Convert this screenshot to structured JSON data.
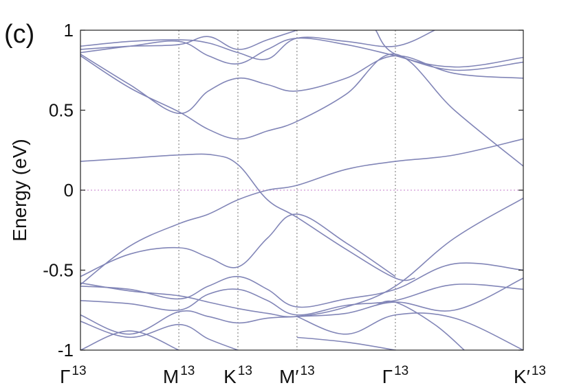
{
  "chart_data": {
    "type": "line",
    "panel_label": "(c)",
    "ylabel": "Energy (eV)",
    "ylim": [
      -1,
      1
    ],
    "xlim": [
      0,
      4.5
    ],
    "y_ticks": [
      {
        "value": 1,
        "label": "1"
      },
      {
        "value": 0.5,
        "label": "0.5"
      },
      {
        "value": 0,
        "label": "0"
      },
      {
        "value": -0.5,
        "label": "-0.5"
      },
      {
        "value": -1,
        "label": "-1"
      }
    ],
    "x_ticks": [
      {
        "value": 0,
        "base": "Γ",
        "sup": "13"
      },
      {
        "value": 1.0,
        "base": "M",
        "sup": "13"
      },
      {
        "value": 1.6,
        "base": "K",
        "sup": "13"
      },
      {
        "value": 2.2,
        "base": "M′",
        "sup": "13"
      },
      {
        "value": 3.2,
        "base": "Γ",
        "sup": "13"
      },
      {
        "value": 4.5,
        "base": "K′",
        "sup": "13"
      }
    ],
    "line_color": "#8185b7",
    "fermi_level": 0,
    "fermi_color": "#d7a6dc",
    "series": [
      {
        "points": [
          [
            0,
            0.18
          ],
          [
            0.5,
            0.2
          ],
          [
            1.0,
            0.22
          ],
          [
            1.35,
            0.22
          ],
          [
            1.6,
            0.16
          ],
          [
            1.9,
            -0.06
          ],
          [
            2.2,
            -0.17
          ],
          [
            2.7,
            -0.37
          ],
          [
            3.2,
            -0.55
          ],
          [
            3.4,
            -0.55
          ]
        ]
      },
      {
        "points": [
          [
            0,
            -0.54
          ],
          [
            0.5,
            -0.4
          ],
          [
            1.0,
            -0.36
          ],
          [
            1.3,
            -0.42
          ],
          [
            1.6,
            -0.48
          ],
          [
            1.9,
            -0.3
          ],
          [
            2.2,
            -0.15
          ],
          [
            2.7,
            -0.33
          ],
          [
            3.2,
            -0.54
          ]
        ]
      },
      {
        "points": [
          [
            0,
            -0.59
          ],
          [
            0.5,
            -0.35
          ],
          [
            1.0,
            -0.21
          ],
          [
            1.3,
            -0.15
          ],
          [
            1.6,
            -0.06
          ],
          [
            1.9,
            0.0
          ],
          [
            2.2,
            0.03
          ],
          [
            2.7,
            0.13
          ],
          [
            3.2,
            0.18
          ],
          [
            3.8,
            0.22
          ],
          [
            4.5,
            0.32
          ]
        ]
      },
      {
        "points": [
          [
            0,
            0.84
          ],
          [
            0.5,
            0.64
          ],
          [
            1.0,
            0.49
          ],
          [
            1.3,
            0.38
          ],
          [
            1.6,
            0.32
          ],
          [
            1.9,
            0.37
          ],
          [
            2.2,
            0.43
          ],
          [
            2.7,
            0.6
          ],
          [
            3.2,
            0.85
          ],
          [
            3.8,
            0.5
          ],
          [
            4.5,
            0.15
          ]
        ]
      },
      {
        "points": [
          [
            0,
            0.85
          ],
          [
            0.5,
            0.66
          ],
          [
            1.0,
            0.48
          ],
          [
            1.3,
            0.62
          ],
          [
            1.6,
            0.7
          ],
          [
            1.9,
            0.66
          ],
          [
            2.2,
            0.62
          ],
          [
            2.7,
            0.7
          ],
          [
            3.2,
            0.84
          ],
          [
            3.8,
            0.73
          ],
          [
            4.5,
            0.7
          ]
        ]
      },
      {
        "points": [
          [
            0,
            0.86
          ],
          [
            0.5,
            0.9
          ],
          [
            1.0,
            0.93
          ],
          [
            1.3,
            0.84
          ],
          [
            1.6,
            0.79
          ],
          [
            1.9,
            0.88
          ],
          [
            2.2,
            0.95
          ],
          [
            2.7,
            0.91
          ],
          [
            3.2,
            0.84
          ],
          [
            3.8,
            0.75
          ],
          [
            4.5,
            0.8
          ]
        ]
      },
      {
        "points": [
          [
            0,
            0.9
          ],
          [
            0.5,
            0.93
          ],
          [
            1.0,
            0.94
          ],
          [
            1.3,
            0.92
          ],
          [
            1.6,
            0.86
          ],
          [
            1.9,
            0.82
          ],
          [
            2.2,
            0.95
          ],
          [
            2.7,
            0.93
          ],
          [
            3.2,
            0.9
          ],
          [
            3.6,
            1.0
          ]
        ]
      },
      {
        "points": [
          [
            0,
            0.88
          ],
          [
            0.5,
            0.9
          ],
          [
            1.0,
            0.91
          ],
          [
            1.3,
            0.96
          ],
          [
            1.6,
            0.88
          ],
          [
            1.9,
            0.94
          ],
          [
            2.2,
            1.0
          ]
        ]
      },
      {
        "points": [
          [
            3.0,
            1.0
          ],
          [
            3.2,
            0.85
          ],
          [
            3.8,
            0.77
          ],
          [
            4.5,
            0.83
          ]
        ]
      },
      {
        "points": [
          [
            0,
            -0.6
          ],
          [
            0.5,
            -0.62
          ],
          [
            1.0,
            -0.68
          ],
          [
            1.3,
            -0.6
          ],
          [
            1.6,
            -0.54
          ],
          [
            1.9,
            -0.62
          ],
          [
            2.2,
            -0.73
          ],
          [
            2.7,
            -0.68
          ],
          [
            3.2,
            -0.62
          ],
          [
            3.8,
            -0.46
          ],
          [
            4.5,
            -0.5
          ]
        ]
      },
      {
        "points": [
          [
            0,
            -0.69
          ],
          [
            0.5,
            -0.71
          ],
          [
            1.0,
            -0.75
          ],
          [
            1.3,
            -0.65
          ],
          [
            1.6,
            -0.62
          ],
          [
            1.9,
            -0.69
          ],
          [
            2.2,
            -0.78
          ],
          [
            2.7,
            -0.72
          ],
          [
            3.2,
            -0.69
          ],
          [
            3.8,
            -0.59
          ],
          [
            4.5,
            -0.62
          ]
        ]
      },
      {
        "points": [
          [
            0,
            -0.58
          ],
          [
            0.5,
            -0.63
          ],
          [
            1.0,
            -0.66
          ],
          [
            1.3,
            -0.7
          ],
          [
            1.6,
            -0.74
          ],
          [
            1.9,
            -0.77
          ],
          [
            2.2,
            -0.79
          ],
          [
            2.7,
            -0.73
          ],
          [
            3.2,
            -0.6
          ],
          [
            3.8,
            -0.3
          ],
          [
            4.5,
            -0.05
          ]
        ]
      },
      {
        "points": [
          [
            0,
            -0.78
          ],
          [
            0.5,
            -0.9
          ],
          [
            1.0,
            -0.76
          ],
          [
            1.3,
            -0.79
          ],
          [
            1.6,
            -0.83
          ],
          [
            1.9,
            -0.8
          ],
          [
            2.2,
            -0.79
          ],
          [
            2.7,
            -0.77
          ],
          [
            3.2,
            -0.7
          ],
          [
            3.8,
            -0.75
          ],
          [
            4.5,
            -0.55
          ]
        ]
      },
      {
        "points": [
          [
            0,
            -0.82
          ],
          [
            0.5,
            -0.92
          ],
          [
            1.0,
            -0.84
          ],
          [
            1.3,
            -0.93
          ],
          [
            1.6,
            -1.0
          ]
        ]
      },
      {
        "points": [
          [
            0,
            -1.0
          ],
          [
            0.5,
            -0.88
          ],
          [
            1.0,
            -1.0
          ]
        ]
      },
      {
        "points": [
          [
            2.2,
            -0.79
          ],
          [
            2.7,
            -0.9
          ],
          [
            3.2,
            -0.78
          ],
          [
            3.8,
            -0.8
          ],
          [
            4.5,
            -1.0
          ]
        ]
      },
      {
        "points": [
          [
            2.2,
            -0.92
          ],
          [
            2.7,
            -0.95
          ],
          [
            3.2,
            -1.0
          ]
        ]
      },
      {
        "points": [
          [
            3.0,
            -0.72
          ],
          [
            3.2,
            -0.7
          ],
          [
            3.6,
            -0.84
          ],
          [
            3.9,
            -1.0
          ]
        ]
      }
    ]
  }
}
